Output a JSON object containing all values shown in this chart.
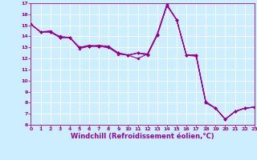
{
  "series": [
    {
      "x": [
        0,
        1,
        2,
        3,
        4,
        5,
        6,
        7,
        8,
        9,
        10,
        11,
        12,
        13,
        14,
        15,
        16,
        17,
        18,
        19,
        20,
        21,
        22,
        23
      ],
      "y": [
        15.1,
        14.4,
        14.4,
        13.9,
        13.9,
        13.0,
        13.1,
        13.1,
        13.0,
        12.5,
        12.3,
        12.0,
        12.4,
        14.1,
        16.8,
        15.5,
        12.3,
        12.3,
        8.0,
        7.5,
        6.5,
        7.2,
        7.5,
        7.6
      ]
    },
    {
      "x": [
        0,
        1,
        2,
        3,
        4,
        5,
        6,
        7,
        8,
        9,
        10,
        11,
        12,
        13,
        14,
        15,
        16,
        17,
        18,
        19,
        20,
        21,
        22,
        23
      ],
      "y": [
        15.1,
        14.4,
        14.4,
        13.9,
        13.9,
        12.9,
        13.1,
        13.1,
        13.0,
        12.4,
        12.3,
        12.5,
        12.4,
        14.2,
        16.8,
        15.5,
        12.3,
        12.2,
        8.0,
        7.5,
        6.5,
        7.2,
        7.5,
        7.6
      ]
    },
    {
      "x": [
        0,
        1,
        2,
        3,
        4,
        5,
        6,
        7,
        8,
        9,
        10,
        11,
        12,
        13,
        14,
        15,
        16,
        17,
        18,
        19,
        20,
        21,
        22,
        23
      ],
      "y": [
        15.1,
        14.4,
        14.5,
        13.9,
        13.9,
        13.0,
        13.1,
        13.2,
        13.1,
        12.5,
        12.3,
        12.5,
        12.3,
        14.1,
        16.8,
        15.5,
        12.3,
        12.3,
        8.1,
        7.5,
        6.5,
        7.2,
        7.5,
        7.6
      ]
    },
    {
      "x": [
        0,
        1,
        2,
        3,
        4,
        5,
        6,
        7,
        8,
        9,
        10,
        11,
        12,
        13,
        14,
        15,
        16,
        17,
        18,
        19,
        20,
        21,
        22,
        23
      ],
      "y": [
        15.1,
        14.4,
        14.4,
        14.0,
        13.9,
        13.0,
        13.2,
        13.1,
        13.0,
        12.5,
        12.3,
        12.5,
        12.4,
        14.2,
        16.9,
        15.5,
        12.3,
        12.3,
        8.0,
        7.5,
        6.5,
        7.2,
        7.5,
        7.6
      ]
    }
  ],
  "color": "#990099",
  "marker": "D",
  "markersize": 1.8,
  "linewidth": 0.8,
  "xlim": [
    0,
    23
  ],
  "ylim": [
    6,
    17
  ],
  "yticks": [
    6,
    7,
    8,
    9,
    10,
    11,
    12,
    13,
    14,
    15,
    16,
    17
  ],
  "xticks": [
    0,
    1,
    2,
    3,
    4,
    5,
    6,
    7,
    8,
    9,
    10,
    11,
    12,
    13,
    14,
    15,
    16,
    17,
    18,
    19,
    20,
    21,
    22,
    23
  ],
  "xlabel": "Windchill (Refroidissement éolien,°C)",
  "background_color": "#cceeff",
  "grid_color": "#ffffff",
  "text_color": "#990099",
  "tick_fontsize": 4.5,
  "xlabel_fontsize": 6.0
}
